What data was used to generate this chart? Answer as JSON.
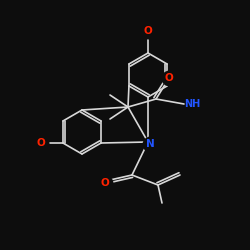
{
  "background_color": "#0d0d0d",
  "bond_color": "#d8d8d8",
  "atom_colors": {
    "O": "#ff2200",
    "N": "#2255ff",
    "C": "#d8d8d8"
  },
  "bond_width": 1.2,
  "font_size_atom": 6.5
}
